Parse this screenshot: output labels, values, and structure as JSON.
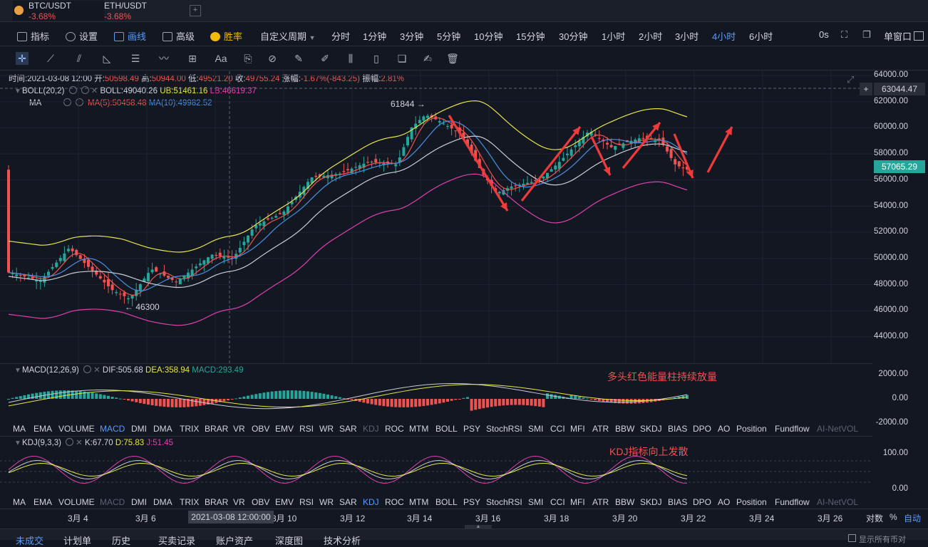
{
  "tabs": [
    {
      "symbol": "BTC/USDT",
      "change": "-3.68%"
    },
    {
      "symbol": "ETH/USDT",
      "change": "-3.68%"
    }
  ],
  "toolbar": {
    "indicators": "指标",
    "settings": "设置",
    "draw": "画线",
    "advanced": "高级",
    "winrate": "胜率",
    "custom_period": "自定义周期",
    "periods": [
      "分时",
      "1分钟",
      "3分钟",
      "5分钟",
      "10分钟",
      "15分钟",
      "30分钟",
      "1小时",
      "2小时",
      "3小时",
      "4小时",
      "6小时"
    ],
    "active_period": "4小时",
    "countdown": "0s",
    "single_window": "单窗口"
  },
  "ohlc": {
    "time": "时间:2021-03-08 12:00",
    "open_label": "开:",
    "open": "50598.49",
    "high_label": "高:",
    "high": "50944.00",
    "low_label": "低:",
    "low": "49521.20",
    "close_label": "收:",
    "close": "49755.24",
    "change_label": "涨幅:",
    "change": "-1.67%(-843.25)",
    "amp_label": "振幅:",
    "amp": "2.81%"
  },
  "boll": {
    "name": "BOLL(20,2)",
    "mid": "BOLL:49040.26",
    "ub": "UB:51461.16",
    "lb": "LB:46619.37"
  },
  "ma": {
    "name": "MA",
    "ma5": "MA(5):50458.48",
    "ma10": "MA(10):49982.52"
  },
  "price_axis": [
    "64000.00",
    "62000.00",
    "60000.00",
    "58000.00",
    "56000.00",
    "54000.00",
    "52000.00",
    "50000.00",
    "48000.00",
    "46000.00",
    "44000.00"
  ],
  "crosshair_price": "63044.47",
  "last_price": "57065.29",
  "high_marker": "61844",
  "low_marker": "46300",
  "macd": {
    "name": "MACD(12,26,9)",
    "dif": "DIF:505.68",
    "dea": "DEA:358.94",
    "macd": "MACD:293.49",
    "axis": [
      "2000.00",
      "0.00",
      "-2000.00"
    ]
  },
  "kdj": {
    "name": "KDJ(9,3,3)",
    "k": "K:67.70",
    "d": "D:75.83",
    "j": "J:51.45",
    "axis": [
      "100.00",
      "0.00"
    ]
  },
  "annotations": {
    "macd_note": "多头红色能量柱持续放量",
    "kdj_note": "KDJ指标向上发散"
  },
  "indicator_tabs": [
    "MA",
    "EMA",
    "VOLUME",
    "MACD",
    "DMI",
    "DMA",
    "TRIX",
    "BRAR",
    "VR",
    "OBV",
    "EMV",
    "RSI",
    "WR",
    "SAR",
    "KDJ",
    "ROC",
    "MTM",
    "BOLL",
    "PSY",
    "StochRSI",
    "SMI",
    "CCI",
    "MFI",
    "ATR",
    "BBW",
    "SKDJ",
    "BIAS",
    "DPO",
    "AO",
    "Position",
    "Fundflow",
    "AI-NetVOL"
  ],
  "time_axis": [
    "3月 4",
    "3月 6",
    "3月 10",
    "3月 12",
    "3月 14",
    "3月 16",
    "3月 18",
    "3月 20",
    "3月 22",
    "3月 24",
    "3月 26"
  ],
  "crosshair_time": "2021-03-08 12:00:00",
  "scale_options": {
    "log": "对数",
    "percent": "%",
    "auto": "自动"
  },
  "bottom_tabs": [
    "未成交",
    "计划单",
    "历史",
    "买卖记录",
    "账户资产",
    "深度图",
    "技术分析"
  ],
  "show_all": "显示所有币对",
  "colors": {
    "up": "#26a69a",
    "down": "#ef5350",
    "accent": "#5b9cf6",
    "gold": "#f0b90b",
    "ub": "#e6e64a",
    "lb": "#e040b0"
  }
}
